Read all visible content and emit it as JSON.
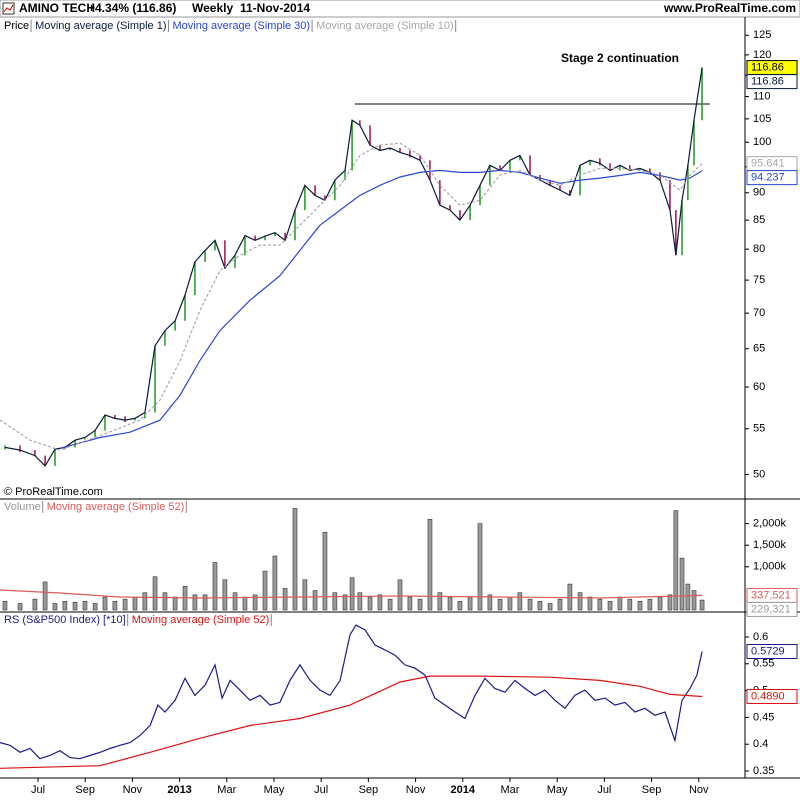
{
  "header": {
    "symbol": "AMINO TECH",
    "change": "+4.34% (116.86)",
    "interval": "Weekly",
    "date": "11-Nov-2014",
    "site": "www.ProRealTime.com"
  },
  "copyright": "© ProRealTime.com",
  "chart_data": [
    {
      "type": "line",
      "log_scale": true,
      "annotation": "Stage 2 continuation",
      "xlim": [
        4.39,
        35.96
      ],
      "ylim": [
        47.6,
        129.6
      ],
      "yticks": [
        50,
        55,
        60,
        65,
        70,
        75,
        80,
        85,
        90,
        95,
        100,
        105,
        110,
        115,
        120,
        125
      ],
      "hline": {
        "value": 108.3,
        "x": [
          19.43,
          34.47
        ]
      },
      "x": [
        4.6,
        5.24,
        5.87,
        6.3,
        6.72,
        7.14,
        7.57,
        7.99,
        8.42,
        8.84,
        9.26,
        9.69,
        10.11,
        10.53,
        10.96,
        11.38,
        11.81,
        12.23,
        12.65,
        13.08,
        13.5,
        13.92,
        14.35,
        14.77,
        15.2,
        15.62,
        16.04,
        16.47,
        16.89,
        17.31,
        17.74,
        18.16,
        18.58,
        19.01,
        19.31,
        19.64,
        20.07,
        20.49,
        20.92,
        21.34,
        21.76,
        22.19,
        22.61,
        23.03,
        23.46,
        23.88,
        24.31,
        24.73,
        25.15,
        25.58,
        26.0,
        26.42,
        26.85,
        27.27,
        27.7,
        28.12,
        28.54,
        28.97,
        29.39,
        29.81,
        30.24,
        30.66,
        31.08,
        31.51,
        31.93,
        32.36,
        32.78,
        33.03,
        33.29,
        33.54,
        33.8,
        34.14
      ],
      "series": [
        {
          "name": "Price",
          "type": "ticks",
          "color": "#000000",
          "up_color": "#1e9a1e",
          "down_color": "#a0104a",
          "end_label": 116.86,
          "end_label_fill": "#ffff00",
          "values": [
            52.9,
            52.6,
            52.0,
            50.9,
            52.7,
            52.9,
            53.7,
            54.0,
            54.8,
            56.6,
            56.2,
            56.0,
            56.2,
            56.9,
            65.4,
            67.5,
            68.9,
            72.7,
            77.9,
            79.8,
            81.5,
            76.9,
            79.0,
            82.3,
            81.5,
            82.2,
            82.8,
            81.5,
            86.8,
            91.4,
            89.5,
            88.6,
            92.4,
            94.3,
            104.7,
            103.6,
            99.4,
            98.3,
            98.8,
            97.9,
            97.3,
            96.3,
            92.4,
            87.7,
            86.8,
            85.0,
            87.7,
            91.4,
            95.3,
            94.3,
            96.3,
            97.3,
            93.4,
            92.4,
            91.4,
            90.5,
            89.5,
            95.3,
            96.3,
            95.7,
            94.3,
            95.3,
            94.3,
            94.7,
            93.9,
            92.4,
            86.8,
            79.0,
            88.6,
            95.3,
            104.7,
            116.86
          ]
        },
        {
          "name": "Moving average (Simple 1)",
          "type": "line",
          "color": "#0a1a3a",
          "end_label": 116.86,
          "values": [
            52.9,
            52.6,
            52.0,
            50.9,
            52.7,
            52.9,
            53.7,
            54.0,
            54.8,
            56.6,
            56.2,
            56.0,
            56.2,
            56.9,
            65.4,
            67.5,
            68.9,
            72.7,
            77.9,
            79.8,
            81.5,
            76.9,
            79.0,
            82.3,
            81.5,
            82.2,
            82.8,
            81.5,
            86.8,
            91.4,
            89.5,
            88.6,
            92.4,
            94.3,
            104.7,
            103.6,
            99.4,
            98.3,
            98.8,
            97.9,
            97.3,
            96.3,
            92.4,
            87.7,
            86.8,
            85.0,
            87.7,
            91.4,
            95.3,
            94.3,
            96.3,
            97.3,
            93.4,
            92.4,
            91.4,
            90.5,
            89.5,
            95.3,
            96.3,
            95.7,
            94.3,
            95.3,
            94.3,
            94.7,
            93.9,
            92.4,
            86.8,
            79.0,
            88.6,
            95.3,
            104.7,
            116.86
          ]
        },
        {
          "name": "Moving average (Simple 30)",
          "type": "line",
          "color": "#2a46d6",
          "end_label": 94.237,
          "x": [
            6.93,
            8.63,
            9.9,
            11.17,
            12.02,
            12.86,
            13.71,
            14.98,
            16.25,
            17.1,
            17.95,
            18.8,
            19.64,
            20.49,
            21.34,
            22.19,
            23.03,
            23.88,
            24.73,
            25.58,
            26.42,
            27.27,
            28.12,
            28.97,
            29.81,
            30.66,
            31.51,
            32.36,
            33.2,
            33.63,
            34.14
          ],
          "values": [
            52.8,
            54.0,
            54.6,
            56.0,
            59.0,
            63.4,
            67.5,
            71.9,
            75.7,
            79.8,
            84.1,
            86.8,
            89.5,
            91.4,
            93.0,
            93.9,
            94.3,
            93.9,
            93.9,
            94.3,
            93.9,
            92.8,
            91.8,
            92.4,
            92.8,
            93.3,
            93.9,
            93.3,
            92.4,
            92.8,
            94.237
          ]
        },
        {
          "name": "Moving average (Simple 10)",
          "type": "line",
          "color": "#a8a8a8",
          "dash": true,
          "end_label": 95.641,
          "x": [
            4.39,
            5.66,
            6.93,
            8.63,
            10.32,
            11.17,
            12.02,
            12.86,
            13.71,
            14.56,
            15.41,
            16.25,
            17.1,
            17.95,
            18.8,
            19.64,
            20.49,
            21.34,
            22.19,
            23.03,
            23.88,
            24.73,
            25.58,
            26.42,
            27.27,
            28.12,
            28.97,
            29.81,
            30.66,
            31.51,
            32.36,
            33.2,
            33.63,
            34.14
          ],
          "values": [
            56.0,
            53.7,
            52.6,
            54.2,
            56.0,
            58.4,
            63.4,
            70.4,
            76.5,
            79.0,
            80.7,
            80.7,
            84.1,
            87.7,
            91.4,
            97.3,
            99.4,
            99.8,
            97.3,
            91.4,
            87.7,
            88.6,
            93.4,
            94.3,
            92.4,
            91.4,
            93.4,
            94.7,
            94.7,
            94.3,
            93.4,
            90.5,
            93.4,
            95.641
          ]
        }
      ]
    },
    {
      "type": "bar",
      "xlim": [
        4.39,
        35.96
      ],
      "ylim": [
        0,
        2500000
      ],
      "yticks": [
        {
          "value": 2000000,
          "label": "2,000k"
        },
        {
          "value": 1500000,
          "label": "1,500k"
        },
        {
          "value": 1000000,
          "label": "1,000k"
        }
      ],
      "x": [
        4.6,
        5.24,
        5.87,
        6.3,
        6.72,
        7.14,
        7.57,
        7.99,
        8.42,
        8.84,
        9.26,
        9.69,
        10.11,
        10.53,
        10.96,
        11.38,
        11.81,
        12.23,
        12.65,
        13.08,
        13.5,
        13.92,
        14.35,
        14.77,
        15.2,
        15.62,
        16.04,
        16.47,
        16.89,
        17.31,
        17.74,
        18.16,
        18.58,
        19.01,
        19.31,
        19.64,
        20.07,
        20.49,
        20.92,
        21.34,
        21.76,
        22.19,
        22.61,
        23.03,
        23.46,
        23.88,
        24.31,
        24.73,
        25.15,
        25.58,
        26.0,
        26.42,
        26.85,
        27.27,
        27.7,
        28.12,
        28.54,
        28.97,
        29.39,
        29.81,
        30.24,
        30.66,
        31.08,
        31.51,
        31.93,
        32.36,
        32.78,
        33.03,
        33.29,
        33.54,
        33.8,
        34.14
      ],
      "series": [
        {
          "name": "Volume",
          "type": "bar",
          "color": "#9a9a9a",
          "end_label": {
            "value": 229321,
            "label": "229,321"
          },
          "values": [
            200000,
            150000,
            250000,
            650000,
            150000,
            200000,
            180000,
            200000,
            150000,
            300000,
            200000,
            250000,
            300000,
            400000,
            770000,
            400000,
            300000,
            550000,
            350000,
            350000,
            1100000,
            700000,
            400000,
            300000,
            350000,
            900000,
            1250000,
            500000,
            2350000,
            700000,
            450000,
            1800000,
            400000,
            350000,
            750000,
            400000,
            300000,
            350000,
            250000,
            700000,
            300000,
            250000,
            2100000,
            400000,
            300000,
            200000,
            300000,
            2000000,
            350000,
            250000,
            300000,
            400000,
            250000,
            200000,
            150000,
            250000,
            600000,
            400000,
            300000,
            250000,
            200000,
            300000,
            250000,
            200000,
            250000,
            300000,
            350000,
            2300000,
            1200000,
            600000,
            450000,
            229321
          ]
        },
        {
          "name": "Moving average (Simple 52)",
          "type": "line",
          "color": "#e05a5a",
          "end_label": {
            "value": 337521,
            "label": "337,521"
          },
          "x": [
            4.39,
            6.93,
            9.47,
            12.86,
            17.1,
            21.34,
            25.58,
            29.81,
            34.14
          ],
          "values": [
            463000,
            394000,
            301000,
            278000,
            301000,
            324000,
            301000,
            278000,
            337521
          ]
        }
      ]
    },
    {
      "type": "line",
      "xlim": [
        4.39,
        35.96
      ],
      "ylim": [
        0.337,
        0.641
      ],
      "yticks": [
        0.6,
        0.55,
        0.5,
        0.45,
        0.4,
        0.35
      ],
      "xticks": [
        {
          "value": 6,
          "label": "Jul"
        },
        {
          "value": 8,
          "label": "Sep"
        },
        {
          "value": 10,
          "label": "Nov"
        },
        {
          "value": 12,
          "label": "2013"
        },
        {
          "value": 14,
          "label": "Mar"
        },
        {
          "value": 16,
          "label": "May"
        },
        {
          "value": 18,
          "label": "Jul"
        },
        {
          "value": 20,
          "label": "Sep"
        },
        {
          "value": 22,
          "label": "Nov"
        },
        {
          "value": 24,
          "label": "2014"
        },
        {
          "value": 26,
          "label": "Mar"
        },
        {
          "value": 28,
          "label": "May"
        },
        {
          "value": 30,
          "label": "Jul"
        },
        {
          "value": 32,
          "label": "Sep"
        },
        {
          "value": 34,
          "label": "Nov"
        }
      ],
      "series": [
        {
          "name": "RS (S&P500 Index) [*10]",
          "type": "line",
          "color": "#1a1a8c",
          "end_label": 0.5729,
          "x": [
            4.39,
            4.81,
            5.24,
            5.66,
            6.08,
            6.51,
            6.93,
            7.36,
            7.78,
            8.2,
            8.63,
            9.05,
            9.47,
            9.9,
            10.32,
            10.75,
            11.08,
            11.38,
            11.81,
            12.23,
            12.65,
            13.08,
            13.5,
            13.8,
            14.14,
            14.56,
            14.98,
            15.41,
            15.83,
            16.25,
            16.68,
            17.1,
            17.53,
            17.95,
            18.37,
            18.8,
            19.22,
            19.47,
            19.86,
            20.28,
            20.7,
            21.13,
            21.55,
            21.97,
            22.4,
            22.82,
            23.25,
            23.67,
            24.09,
            24.52,
            24.94,
            25.36,
            25.79,
            26.21,
            26.64,
            27.06,
            27.48,
            27.91,
            28.33,
            28.75,
            29.18,
            29.6,
            30.03,
            30.45,
            30.87,
            31.3,
            31.72,
            32.14,
            32.57,
            32.99,
            33.29,
            33.63,
            33.92,
            34.14
          ],
          "values": [
            0.403,
            0.398,
            0.385,
            0.392,
            0.373,
            0.379,
            0.388,
            0.375,
            0.373,
            0.379,
            0.385,
            0.392,
            0.398,
            0.403,
            0.416,
            0.435,
            0.473,
            0.46,
            0.482,
            0.523,
            0.491,
            0.51,
            0.548,
            0.486,
            0.519,
            0.501,
            0.482,
            0.491,
            0.473,
            0.478,
            0.519,
            0.548,
            0.519,
            0.501,
            0.491,
            0.519,
            0.604,
            0.622,
            0.613,
            0.585,
            0.576,
            0.566,
            0.548,
            0.542,
            0.529,
            0.486,
            0.473,
            0.46,
            0.448,
            0.491,
            0.523,
            0.504,
            0.497,
            0.519,
            0.504,
            0.491,
            0.501,
            0.482,
            0.467,
            0.491,
            0.501,
            0.482,
            0.486,
            0.473,
            0.478,
            0.46,
            0.467,
            0.454,
            0.46,
            0.407,
            0.482,
            0.504,
            0.529,
            0.5729
          ]
        },
        {
          "name": "Moving average (Simple 52)",
          "type": "line",
          "color": "#dd1111",
          "end_label": {
            "value": 0.489,
            "label": "0.4890"
          },
          "x": [
            4.39,
            8.63,
            10.75,
            12.86,
            14.98,
            17.1,
            19.22,
            21.34,
            22.61,
            24.73,
            27.7,
            29.81,
            31.51,
            32.78,
            34.14
          ],
          "values": [
            0.355,
            0.36,
            0.385,
            0.411,
            0.435,
            0.448,
            0.473,
            0.516,
            0.527,
            0.527,
            0.525,
            0.519,
            0.508,
            0.493,
            0.489
          ]
        }
      ]
    }
  ]
}
